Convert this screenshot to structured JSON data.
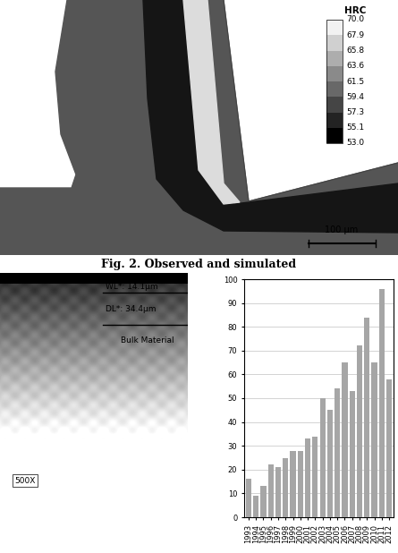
{
  "hardness_map": {
    "colorbar_title": "HRC",
    "levels": [
      "70.0",
      "67.9",
      "65.8",
      "63.6",
      "61.5",
      "59.4",
      "57.3",
      "55.1",
      "53.0"
    ],
    "scale_bar": "100 µm"
  },
  "caption": "Fig. 2. Observed and simulated",
  "micrograph": {
    "labels": [
      "WL*: 14.1µm",
      "DL*: 34.4µm",
      "Bulk Material"
    ],
    "magnification": "500X"
  },
  "chart_data": {
    "type": "bar",
    "categories": [
      "1993",
      "1994",
      "1995",
      "1996",
      "1997",
      "1998",
      "1999",
      "2000",
      "2001",
      "2002",
      "2003",
      "2004",
      "2005",
      "2006",
      "2007",
      "2008",
      "2009",
      "2010",
      "2011",
      "2012"
    ],
    "values": [
      16,
      9,
      13,
      22,
      21,
      25,
      28,
      28,
      33,
      34,
      50,
      45,
      54,
      65,
      53,
      72,
      84,
      65,
      96,
      58
    ],
    "color": "#a6a6a6",
    "ylim": [
      0,
      100
    ],
    "yticks": [
      0,
      10,
      20,
      30,
      40,
      50,
      60,
      70,
      80,
      90,
      100
    ],
    "grid": true
  }
}
